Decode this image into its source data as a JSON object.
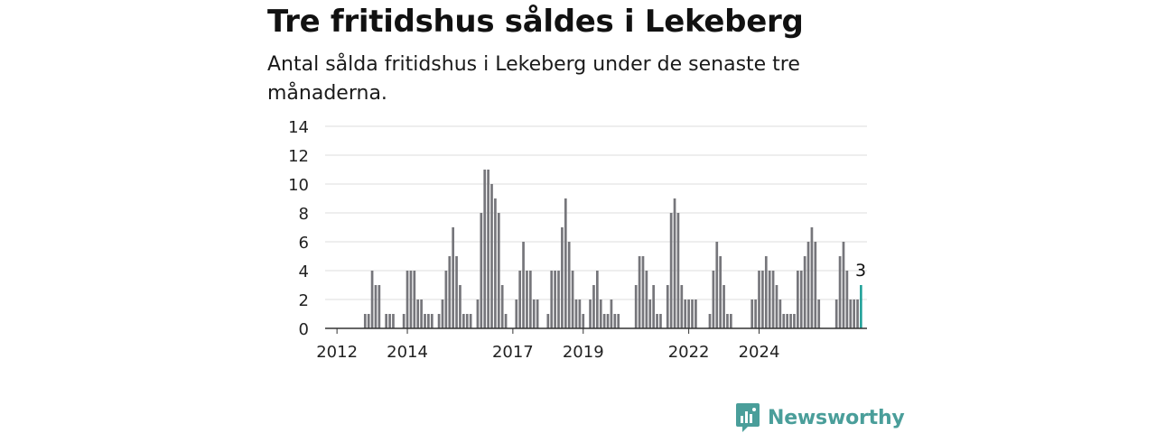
{
  "header": {
    "title": "Tre fritidshus såldes i Lekeberg",
    "subtitle": "Antal sålda fritidshus i Lekeberg under de senaste tre månaderna."
  },
  "brand": {
    "name": "Newsworthy",
    "logo_icon": "newsworthy-logo-icon",
    "color": "#4a9e9a"
  },
  "colors": {
    "bar": "#76767b",
    "highlight": "#1a9e96",
    "grid": "#dddddd",
    "axis": "#333333"
  },
  "chart_data": {
    "type": "bar",
    "title": "Tre fritidshus såldes i Lekeberg",
    "subtitle": "Antal sålda fritidshus i Lekeberg under de senaste tre månaderna.",
    "ylim": [
      0,
      14
    ],
    "yticks": [
      0,
      2,
      4,
      6,
      8,
      10,
      12,
      14
    ],
    "xticks": [
      "2012",
      "2014",
      "2017",
      "2019",
      "2022",
      "2024"
    ],
    "xtick_index": [
      2,
      22,
      52,
      72,
      102,
      122
    ],
    "grid": true,
    "values": [
      0,
      0,
      0,
      0,
      0,
      0,
      0,
      0,
      0,
      0,
      1,
      1,
      4,
      3,
      3,
      0,
      1,
      1,
      1,
      0,
      0,
      1,
      4,
      4,
      4,
      2,
      2,
      1,
      1,
      1,
      0,
      1,
      2,
      4,
      5,
      7,
      5,
      3,
      1,
      1,
      1,
      0,
      2,
      8,
      11,
      11,
      10,
      9,
      8,
      3,
      1,
      0,
      0,
      2,
      4,
      6,
      4,
      4,
      2,
      2,
      0,
      0,
      1,
      4,
      4,
      4,
      7,
      9,
      6,
      4,
      2,
      2,
      1,
      0,
      2,
      3,
      4,
      2,
      1,
      1,
      2,
      1,
      1,
      0,
      0,
      0,
      0,
      3,
      5,
      5,
      4,
      2,
      3,
      1,
      1,
      0,
      3,
      8,
      9,
      8,
      3,
      2,
      2,
      2,
      2,
      0,
      0,
      0,
      1,
      4,
      6,
      5,
      3,
      1,
      1,
      0,
      0,
      0,
      0,
      0,
      2,
      2,
      4,
      4,
      5,
      4,
      4,
      3,
      2,
      1,
      1,
      1,
      1,
      4,
      4,
      5,
      6,
      7,
      6,
      2,
      0,
      0,
      0,
      0,
      2,
      5,
      6,
      4,
      2,
      2,
      2,
      3
    ],
    "highlight_last": true,
    "annotations": [
      {
        "label": "3",
        "target": "last-bar"
      }
    ]
  }
}
